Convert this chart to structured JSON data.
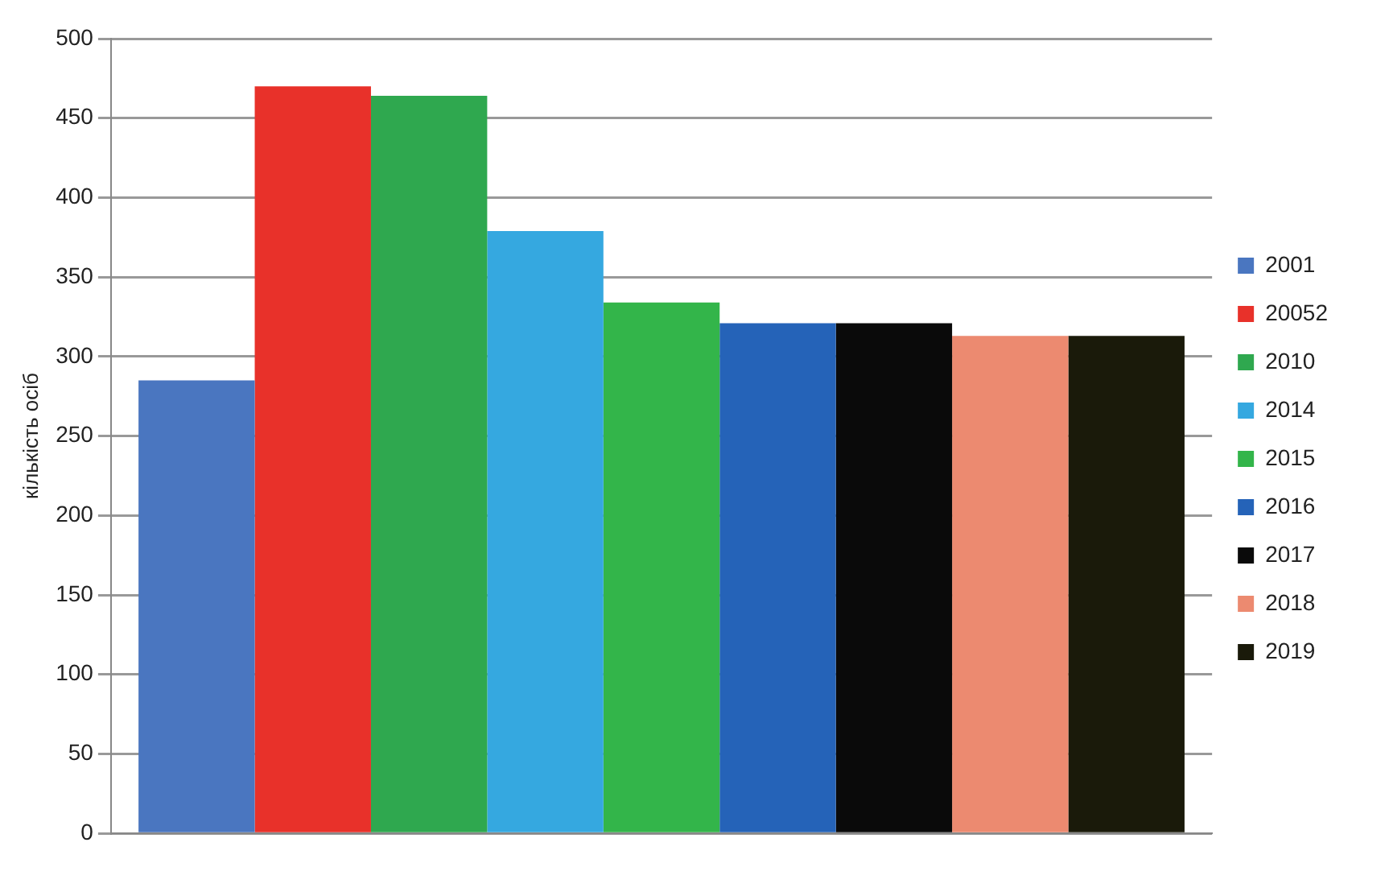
{
  "chart_data": {
    "type": "bar",
    "ylabel": "кількість осіб",
    "categories": [
      null
    ],
    "ylim": [
      0,
      500
    ],
    "yticks": [
      0,
      50,
      100,
      150,
      200,
      250,
      300,
      350,
      400,
      450,
      500
    ],
    "grid": "y",
    "legend": "right",
    "series": [
      {
        "name": "2001",
        "color": "#4a76c0",
        "values": [
          285
        ]
      },
      {
        "name": "20052",
        "color": "#e8312a",
        "values": [
          470
        ]
      },
      {
        "name": "2010",
        "color": "#2fa84f",
        "values": [
          464
        ]
      },
      {
        "name": "2014",
        "color": "#35a8e0",
        "values": [
          379
        ]
      },
      {
        "name": "2015",
        "color": "#33b54a",
        "values": [
          334
        ]
      },
      {
        "name": "2016",
        "color": "#2563b8",
        "values": [
          321
        ]
      },
      {
        "name": "2017",
        "color": "#0a0a0a",
        "values": [
          321
        ]
      },
      {
        "name": "2018",
        "color": "#ec8a70",
        "values": [
          313
        ]
      },
      {
        "name": "2019",
        "color": "#1a1a0a",
        "values": [
          313
        ]
      }
    ]
  }
}
